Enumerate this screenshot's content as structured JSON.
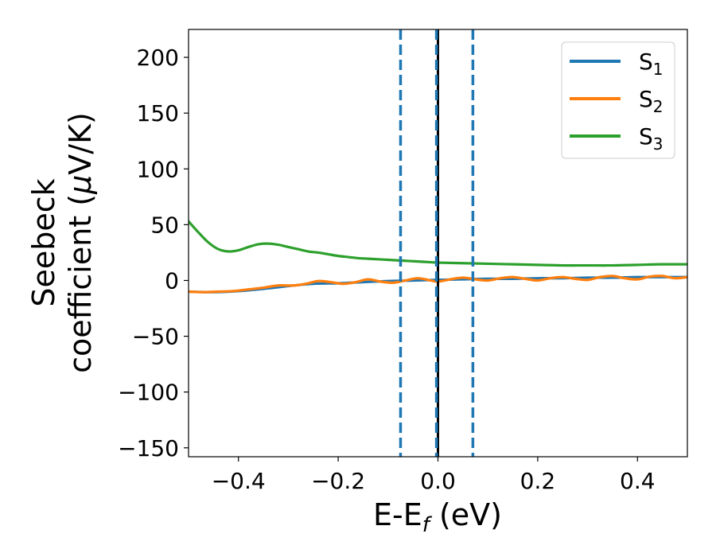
{
  "chart_data": {
    "type": "line",
    "xlabel": {
      "base": "E-E",
      "sub": "f",
      "rest": " (eV)"
    },
    "ylabel": {
      "line1": "Seebeck",
      "line2": "coefficient  (",
      "mu": "μ",
      "line2_end": "V/K)"
    },
    "xlim": [
      -0.5,
      0.5
    ],
    "ylim": [
      -158,
      225
    ],
    "xticks": [
      -0.4,
      -0.2,
      0.0,
      0.2,
      0.4
    ],
    "xtick_labels": [
      "−0.4",
      "−0.2",
      "0.0",
      "0.2",
      "0.4"
    ],
    "yticks": [
      200,
      150,
      100,
      50,
      0,
      -50,
      -100,
      -150
    ],
    "ytick_labels": [
      "200",
      "150",
      "100",
      "50",
      "0",
      "−50",
      "−100",
      "−150"
    ],
    "grid": false,
    "legend_position": "top-right",
    "colors": {
      "s1": "#1f77b4",
      "s2": "#ff7f0e",
      "s3": "#2ca02c",
      "fermi_line": "#000000"
    },
    "series": [
      {
        "name": "S",
        "sub": "1",
        "color": "#1f77b4",
        "x": [
          -0.5,
          -0.45,
          -0.4,
          -0.35,
          -0.3,
          -0.25,
          -0.2,
          -0.15,
          -0.1,
          -0.05,
          0.0,
          0.05,
          0.1,
          0.15,
          0.2,
          0.25,
          0.3,
          0.35,
          0.4,
          0.45,
          0.5
        ],
        "y": [
          -10,
          -10.5,
          -9.5,
          -7.5,
          -5,
          -3,
          -2.5,
          -1.5,
          -0.5,
          0,
          0.5,
          1,
          1.5,
          1.5,
          2,
          2,
          2.5,
          2.5,
          3,
          3,
          3
        ]
      },
      {
        "name": "S",
        "sub": "2",
        "color": "#ff7f0e",
        "x": [
          -0.5,
          -0.47,
          -0.44,
          -0.41,
          -0.38,
          -0.35,
          -0.32,
          -0.29,
          -0.265,
          -0.24,
          -0.215,
          -0.19,
          -0.165,
          -0.14,
          -0.115,
          -0.09,
          -0.065,
          -0.04,
          -0.015,
          0.0,
          0.025,
          0.05,
          0.075,
          0.1,
          0.125,
          0.15,
          0.175,
          0.2,
          0.225,
          0.25,
          0.275,
          0.3,
          0.325,
          0.35,
          0.375,
          0.4,
          0.425,
          0.45,
          0.475,
          0.5
        ],
        "y": [
          -10,
          -10.5,
          -10,
          -9.5,
          -8,
          -6.5,
          -4.5,
          -4.5,
          -3,
          -0.5,
          -1.5,
          -3,
          -1.5,
          1,
          -1,
          -2,
          0,
          2,
          0,
          -1,
          1,
          2.5,
          1,
          0,
          2,
          3,
          1.5,
          0,
          2,
          3,
          1.5,
          0.5,
          3,
          4,
          2,
          1,
          3.5,
          4,
          2,
          3
        ]
      },
      {
        "name": "S",
        "sub": "3",
        "color": "#2ca02c",
        "x": [
          -0.5,
          -0.48,
          -0.46,
          -0.44,
          -0.42,
          -0.4,
          -0.38,
          -0.36,
          -0.34,
          -0.32,
          -0.3,
          -0.28,
          -0.26,
          -0.24,
          -0.22,
          -0.2,
          -0.18,
          -0.16,
          -0.14,
          -0.12,
          -0.1,
          -0.08,
          -0.06,
          -0.04,
          -0.02,
          0.0,
          0.05,
          0.1,
          0.15,
          0.2,
          0.25,
          0.3,
          0.35,
          0.4,
          0.45,
          0.5
        ],
        "y": [
          53,
          43,
          34,
          28,
          26,
          27,
          30,
          32.5,
          33,
          32,
          30,
          28,
          26,
          25,
          23.5,
          22,
          21,
          20,
          19.5,
          19,
          18.5,
          18,
          17.5,
          17,
          16.5,
          16,
          15.5,
          15,
          14.5,
          14,
          13.5,
          13.5,
          13.5,
          14,
          14.5,
          14.5
        ]
      }
    ],
    "vertical_lines": [
      {
        "x": 0.0,
        "style": "solid",
        "color": "#000000"
      },
      {
        "x": -0.075,
        "style": "dashed",
        "color": "#1f77b4"
      },
      {
        "x": -0.003,
        "style": "dashed",
        "color": "#1f77b4"
      },
      {
        "x": 0.07,
        "style": "dashed",
        "color": "#1f77b4"
      }
    ]
  }
}
